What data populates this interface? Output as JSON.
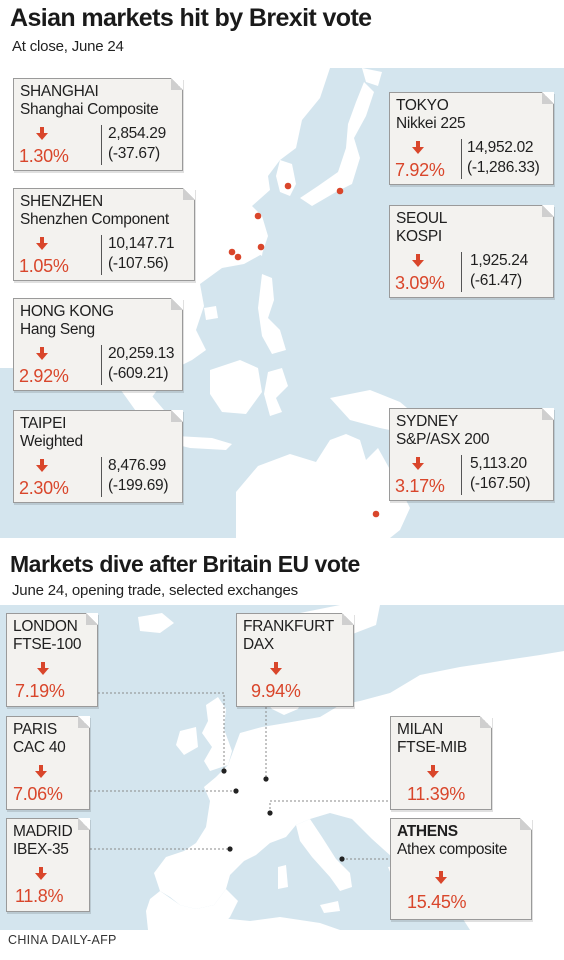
{
  "section1": {
    "title": "Asian markets hit by Brexit vote",
    "subtitle": "At close, June 24",
    "cards": [
      {
        "city": "SHANGHAI",
        "index": "Shanghai Composite",
        "pct": "1.30%",
        "value": "2,854.29",
        "change": "(-37.67)"
      },
      {
        "city": "SHENZHEN",
        "index": "Shenzhen Component",
        "pct": "1.05%",
        "value": "10,147.71",
        "change": "(-107.56)"
      },
      {
        "city": "HONG KONG",
        "index": "Hang Seng",
        "pct": "2.92%",
        "value": "20,259.13",
        "change": "(-609.21)"
      },
      {
        "city": "TAIPEI",
        "index": "Weighted",
        "pct": "2.30%",
        "value": "8,476.99",
        "change": "(-199.69)"
      },
      {
        "city": "TOKYO",
        "index": "Nikkei 225",
        "pct": "7.92%",
        "value": "14,952.02",
        "change": "(-1,286.33)"
      },
      {
        "city": "SEOUL",
        "index": "KOSPI",
        "pct": "3.09%",
        "value": "1,925.24",
        "change": "(-61.47)"
      },
      {
        "city": "SYDNEY",
        "index": "S&P/ASX 200",
        "pct": "3.17%",
        "value": "5,113.20",
        "change": "(-167.50)"
      }
    ]
  },
  "section2": {
    "title": "Markets dive after Britain EU vote",
    "subtitle": "June 24, opening trade, selected exchanges",
    "cards": [
      {
        "city": "LONDON",
        "index": "FTSE-100",
        "pct": "7.19%"
      },
      {
        "city": "FRANKFURT",
        "index": "DAX",
        "pct": "9.94%"
      },
      {
        "city": "PARIS",
        "index": "CAC 40",
        "pct": "7.06%"
      },
      {
        "city": "MILAN",
        "index": "FTSE-MIB",
        "pct": "11.39%"
      },
      {
        "city": "MADRID",
        "index": "IBEX-35",
        "pct": "11.8%"
      },
      {
        "city": "ATHENS",
        "index": "Athex composite",
        "pct": "15.45%"
      }
    ]
  },
  "colors": {
    "land": "#ffffff",
    "sea": "#d4e5ee",
    "down_arrow": "#d9462b",
    "dot": "#d9462b",
    "card_bg": "#f3f2ef"
  },
  "icons": {
    "down": "down-arrow-icon",
    "fold": "folded-corner-icon"
  },
  "source": "CHINA DAILY-AFP"
}
